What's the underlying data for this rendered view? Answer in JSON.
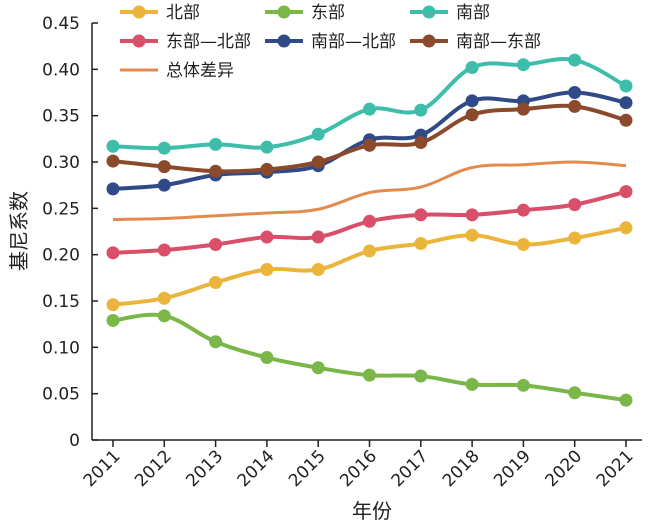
{
  "chart_data": {
    "type": "line",
    "title": "",
    "xlabel": "年份",
    "ylabel": "基尼系数",
    "x": [
      "2011",
      "2012",
      "2013",
      "2014",
      "2015",
      "2016",
      "2017",
      "2018",
      "2019",
      "2020",
      "2021"
    ],
    "ylim": [
      0,
      0.45
    ],
    "yticks": [
      "0",
      "0.05",
      "0.10",
      "0.15",
      "0.20",
      "0.25",
      "0.30",
      "0.35",
      "0.40",
      "0.45"
    ],
    "grid": false,
    "legend": "top",
    "series": [
      {
        "name": "北部",
        "color": "#ebb43b",
        "marker": true,
        "values": [
          0.146,
          0.153,
          0.17,
          0.184,
          0.184,
          0.204,
          0.212,
          0.221,
          0.211,
          0.218,
          0.229
        ]
      },
      {
        "name": "东部",
        "color": "#7ab648",
        "marker": true,
        "values": [
          0.129,
          0.134,
          0.106,
          0.089,
          0.078,
          0.07,
          0.069,
          0.06,
          0.059,
          0.051,
          0.043
        ]
      },
      {
        "name": "南部",
        "color": "#3dbdaa",
        "marker": true,
        "values": [
          0.317,
          0.315,
          0.319,
          0.316,
          0.33,
          0.357,
          0.356,
          0.402,
          0.405,
          0.41,
          0.382
        ]
      },
      {
        "name": "东部—北部",
        "color": "#d94e68",
        "marker": true,
        "values": [
          0.202,
          0.205,
          0.211,
          0.219,
          0.219,
          0.236,
          0.243,
          0.243,
          0.248,
          0.254,
          0.268
        ]
      },
      {
        "name": "南部—北部",
        "color": "#2f4a87",
        "marker": true,
        "values": [
          0.271,
          0.275,
          0.286,
          0.289,
          0.296,
          0.324,
          0.329,
          0.366,
          0.366,
          0.375,
          0.364
        ]
      },
      {
        "name": "南部—东部",
        "color": "#8a4a2b",
        "marker": true,
        "values": [
          0.301,
          0.295,
          0.29,
          0.292,
          0.3,
          0.318,
          0.321,
          0.351,
          0.357,
          0.36,
          0.345
        ]
      },
      {
        "name": "总体差异",
        "color": "#e38a4d",
        "marker": false,
        "values": [
          0.238,
          0.239,
          0.242,
          0.245,
          0.249,
          0.267,
          0.273,
          0.294,
          0.297,
          0.3,
          0.296
        ]
      }
    ]
  }
}
